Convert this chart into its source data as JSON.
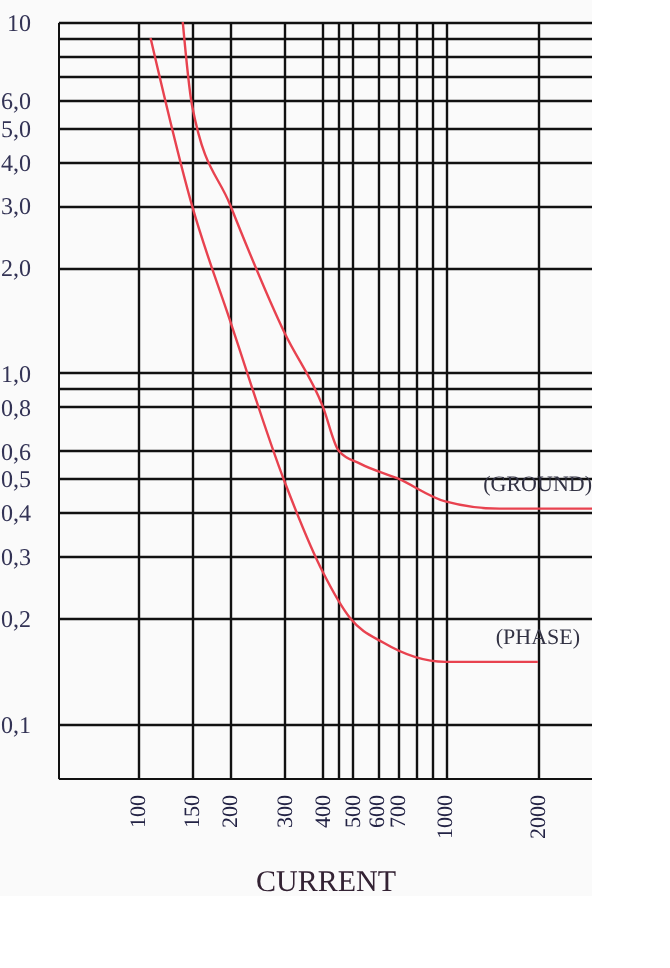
{
  "chart_data": {
    "type": "line",
    "xlabel": "CURRENT",
    "log": "xy",
    "grid": true,
    "legend": false,
    "marker": "none",
    "line_style": "solid",
    "xlim": [
      55,
      3000
    ],
    "ylim": [
      0.07,
      10
    ],
    "xticks": [
      100,
      150,
      200,
      300,
      400,
      {
        "value": 450,
        "label": null
      },
      500,
      600,
      700,
      {
        "value": 800,
        "label": null
      },
      {
        "value": 900,
        "label": null
      },
      1000,
      2000
    ],
    "yticks": [
      {
        "value": 0.1,
        "label": "0,1"
      },
      {
        "value": 0.2,
        "label": "0,2"
      },
      {
        "value": 0.3,
        "label": "0,3"
      },
      {
        "value": 0.4,
        "label": "0,4"
      },
      {
        "value": 0.5,
        "label": "0,5"
      },
      {
        "value": 0.6,
        "label": "0,6"
      },
      {
        "value": 0.8,
        "label": "0,8"
      },
      {
        "value": 0.9,
        "label": null
      },
      {
        "value": 1,
        "label": "1,0"
      },
      {
        "value": 2,
        "label": "2,0"
      },
      {
        "value": 3,
        "label": "3,0"
      },
      {
        "value": 4,
        "label": "4,0"
      },
      {
        "value": 5,
        "label": "5,0"
      },
      {
        "value": 6,
        "label": "6,0"
      },
      {
        "value": 7,
        "label": null
      },
      {
        "value": 8,
        "label": null
      },
      {
        "value": 9,
        "label": null
      },
      10
    ],
    "series": [
      {
        "name": "(GROUND)",
        "color": "#e8424f",
        "x": [
          140,
          150,
          200,
          300,
          400,
          450,
          530,
          700,
          1000,
          1500,
          3000
        ],
        "values": [
          10,
          5.8,
          3.0,
          1.3,
          0.8,
          0.6,
          0.55,
          0.5,
          0.43,
          0.41,
          0.41
        ]
      },
      {
        "name": "(PHASE)",
        "color": "#e8424f",
        "x": [
          110,
          150,
          200,
          300,
          400,
          490,
          630,
          1000,
          2000
        ],
        "values": [
          9,
          3.0,
          1.4,
          0.49,
          0.27,
          0.2,
          0.17,
          0.15,
          0.15
        ]
      }
    ]
  }
}
